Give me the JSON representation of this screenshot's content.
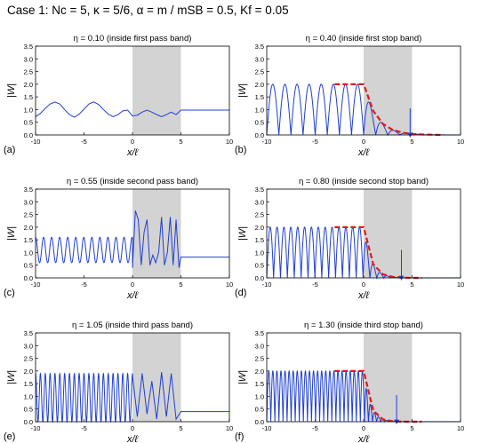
{
  "header": {
    "case_title": "Case 1:    Nc = 5,  κ = 5/6,  α = m / mSB = 0.5, Kf = 0.05"
  },
  "chart_data": [
    {
      "type": "line",
      "panel_label": "(a)",
      "title": "η = 0.10 (inside first pass band)",
      "xlabel": "x/ℓ",
      "ylabel": "|W|",
      "xlim": [
        -10,
        10
      ],
      "ylim": [
        0,
        3.5
      ],
      "xticks": [
        "-10",
        "-5",
        "0",
        "5",
        "10"
      ],
      "yticks": [
        "0.0",
        "0.5",
        "1.0",
        "1.5",
        "2.0",
        "2.5",
        "3.0",
        "3.5"
      ],
      "shaded_region": [
        0,
        5
      ],
      "series": [
        {
          "style": "solid",
          "color": "#1f3fd6",
          "x": [
            -10,
            -9.5,
            -9,
            -8.5,
            -8,
            -7.5,
            -7,
            -6.5,
            -6,
            -5.5,
            -5,
            -4.5,
            -4,
            -3.5,
            -3,
            -2.5,
            -2,
            -1.5,
            -1,
            -0.5,
            0,
            0.5,
            1,
            1.5,
            2,
            2.5,
            3,
            3.5,
            4,
            4.5,
            5,
            6,
            7,
            8,
            9,
            10
          ],
          "y": [
            0.72,
            0.85,
            1.05,
            1.22,
            1.3,
            1.22,
            1.0,
            0.8,
            0.7,
            0.82,
            1.02,
            1.22,
            1.3,
            1.2,
            1.0,
            0.82,
            0.72,
            0.8,
            0.95,
            0.98,
            0.75,
            0.78,
            0.9,
            0.98,
            0.9,
            0.8,
            0.72,
            0.8,
            0.9,
            0.8,
            0.98,
            0.98,
            0.98,
            0.98,
            0.98,
            0.98
          ]
        }
      ]
    },
    {
      "type": "line",
      "panel_label": "(b)",
      "title": "η = 0.40 (inside first stop band)",
      "xlabel": "x/ℓ",
      "ylabel": "|W|",
      "xlim": [
        -10,
        10
      ],
      "ylim": [
        0,
        3.5
      ],
      "xticks": [
        "-10",
        "-5",
        "0",
        "5",
        "10"
      ],
      "yticks": [
        "0.0",
        "0.5",
        "1.0",
        "1.5",
        "2.0",
        "2.5",
        "3.0",
        "3.5"
      ],
      "shaded_region": [
        0,
        5
      ],
      "oscillation": {
        "amplitude": 2.0,
        "period": 1.25,
        "decay_length": 1.3,
        "decay_start": 0
      },
      "series": [
        {
          "style": "dashed",
          "color": "#e01b1b",
          "x": [
            -3,
            -2,
            -1,
            0,
            1,
            2,
            3,
            4,
            5,
            6,
            7,
            8
          ],
          "y": [
            2.0,
            2.0,
            2.0,
            2.0,
            0.94,
            0.43,
            0.2,
            0.09,
            0.04,
            0.02,
            0.01,
            0.0
          ]
        }
      ],
      "arrow": {
        "x": 4.8,
        "from_y": 1.05,
        "to_y": 0.05
      }
    },
    {
      "type": "line",
      "panel_label": "(c)",
      "title": "η = 0.55 (inside second pass band)",
      "xlabel": "x/ℓ",
      "ylabel": "|W|",
      "xlim": [
        -10,
        10
      ],
      "ylim": [
        0,
        3.5
      ],
      "xticks": [
        "-10",
        "-5",
        "0",
        "5",
        "10"
      ],
      "yticks": [
        "0.0",
        "0.5",
        "1.0",
        "1.5",
        "2.0",
        "2.5",
        "3.0",
        "3.5"
      ],
      "shaded_region": [
        0,
        5
      ],
      "oscillation": {
        "left_center": 1.1,
        "left_amplitude": 0.5,
        "left_period": 0.83,
        "right_level": 0.8
      },
      "series": [
        {
          "style": "solid",
          "color": "#1f3fd6",
          "x": [
            0,
            0.3,
            0.6,
            0.9,
            1.2,
            1.5,
            1.8,
            2.1,
            2.4,
            2.7,
            3.0,
            3.3,
            3.6,
            3.9,
            4.2,
            4.5,
            4.8,
            5,
            10
          ],
          "y": [
            0.4,
            2.65,
            2.3,
            0.5,
            1.8,
            2.3,
            0.5,
            0.9,
            0.6,
            1.0,
            2.4,
            0.5,
            1.0,
            2.4,
            0.5,
            2.3,
            0.4,
            0.82,
            0.82
          ]
        }
      ]
    },
    {
      "type": "line",
      "panel_label": "(d)",
      "title": "η = 0.80 (inside second stop band)",
      "xlabel": "x/ℓ",
      "ylabel": "|W|",
      "xlim": [
        -10,
        10
      ],
      "ylim": [
        0,
        3.5
      ],
      "xticks": [
        "-10",
        "-5",
        "0",
        "5",
        "10"
      ],
      "yticks": [
        "0.0",
        "0.5",
        "1.0",
        "1.5",
        "2.0",
        "2.5",
        "3.0",
        "3.5"
      ],
      "shaded_region": [
        0,
        5
      ],
      "oscillation": {
        "amplitude": 2.0,
        "period": 0.71,
        "decay_length": 0.75,
        "decay_start": 0
      },
      "series": [
        {
          "style": "dashed",
          "color": "#e01b1b",
          "x": [
            -3,
            -2,
            -1,
            0,
            1,
            2,
            3,
            4,
            5,
            6
          ],
          "y": [
            2.0,
            2.0,
            2.0,
            2.0,
            0.53,
            0.14,
            0.04,
            0.01,
            0.0,
            0.0
          ]
        }
      ],
      "arrow": {
        "x": 3.9,
        "from_y": 1.1,
        "to_y": 0.05
      }
    },
    {
      "type": "line",
      "panel_label": "(e)",
      "title": "η = 1.05 (inside third pass band)",
      "xlabel": "x/ℓ",
      "ylabel": "|W|",
      "xlim": [
        -10,
        10
      ],
      "ylim": [
        0,
        3.5
      ],
      "xticks": [
        "-10",
        "-5",
        "0",
        "5",
        "10"
      ],
      "yticks": [
        "0.0",
        "0.5",
        "1.0",
        "1.5",
        "2.0",
        "2.5",
        "3.0",
        "3.5"
      ],
      "shaded_region": [
        0,
        5
      ],
      "oscillation": {
        "left_center": 0.95,
        "left_amplitude": 0.95,
        "left_period": 0.5,
        "right_level": 0.4
      },
      "series": [
        {
          "style": "solid",
          "color": "#1f3fd6",
          "x": [
            0,
            0.5,
            1.0,
            1.5,
            2.0,
            2.5,
            3.0,
            3.5,
            4.0,
            4.5,
            5,
            10
          ],
          "y": [
            1.8,
            0.2,
            1.9,
            0.3,
            1.6,
            0.1,
            1.95,
            0.2,
            1.9,
            0.1,
            0.4,
            0.4
          ]
        }
      ]
    },
    {
      "type": "line",
      "panel_label": "(f)",
      "title": "η = 1.30 (inside third stop band)",
      "xlabel": "x/ℓ",
      "ylabel": "|W|",
      "xlim": [
        -10,
        10
      ],
      "ylim": [
        0,
        3.5
      ],
      "xticks": [
        "-10",
        "-5",
        "0",
        "5",
        "10"
      ],
      "yticks": [
        "0.0",
        "0.5",
        "1.0",
        "1.5",
        "2.0",
        "2.5",
        "3.0",
        "3.5"
      ],
      "shaded_region": [
        0,
        5
      ],
      "oscillation": {
        "amplitude": 2.0,
        "period": 0.42,
        "decay_length": 0.65,
        "decay_start": 0
      },
      "series": [
        {
          "style": "dashed",
          "color": "#e01b1b",
          "x": [
            -3,
            -2,
            -1,
            0,
            1,
            2,
            3,
            4,
            5,
            6
          ],
          "y": [
            2.0,
            2.0,
            2.0,
            2.0,
            0.43,
            0.09,
            0.02,
            0.0,
            0.0,
            0.0
          ]
        }
      ],
      "arrow": {
        "x": 3.4,
        "from_y": 1.05,
        "to_y": 0.05
      }
    }
  ]
}
